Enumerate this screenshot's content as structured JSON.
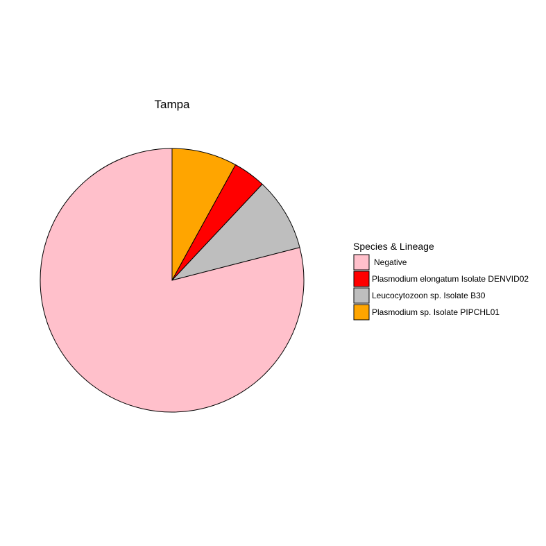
{
  "chart_data": {
    "type": "pie",
    "title": "Tampa",
    "legend_title": "Species & Lineage",
    "legend_position": "right",
    "slices": [
      {
        "label": "Negative",
        "value": 79,
        "color": "#FFC0CB"
      },
      {
        "label": "Plasmodium elongatum Isolate DENVID02",
        "value": 4,
        "color": "#FF0000"
      },
      {
        "label": "Leucocytozoon sp. Isolate B30",
        "value": 9,
        "color": "#BEBEBE"
      },
      {
        "label": "Plasmodium sp. Isolate PIPCHL01",
        "value": 8,
        "color": "#FFA500"
      }
    ],
    "draw_order_clockwise_from_top": [
      "Plasmodium sp. Isolate PIPCHL01",
      "Plasmodium elongatum Isolate DENVID02",
      "Leucocytozoon sp. Isolate B30",
      "Negative"
    ]
  }
}
